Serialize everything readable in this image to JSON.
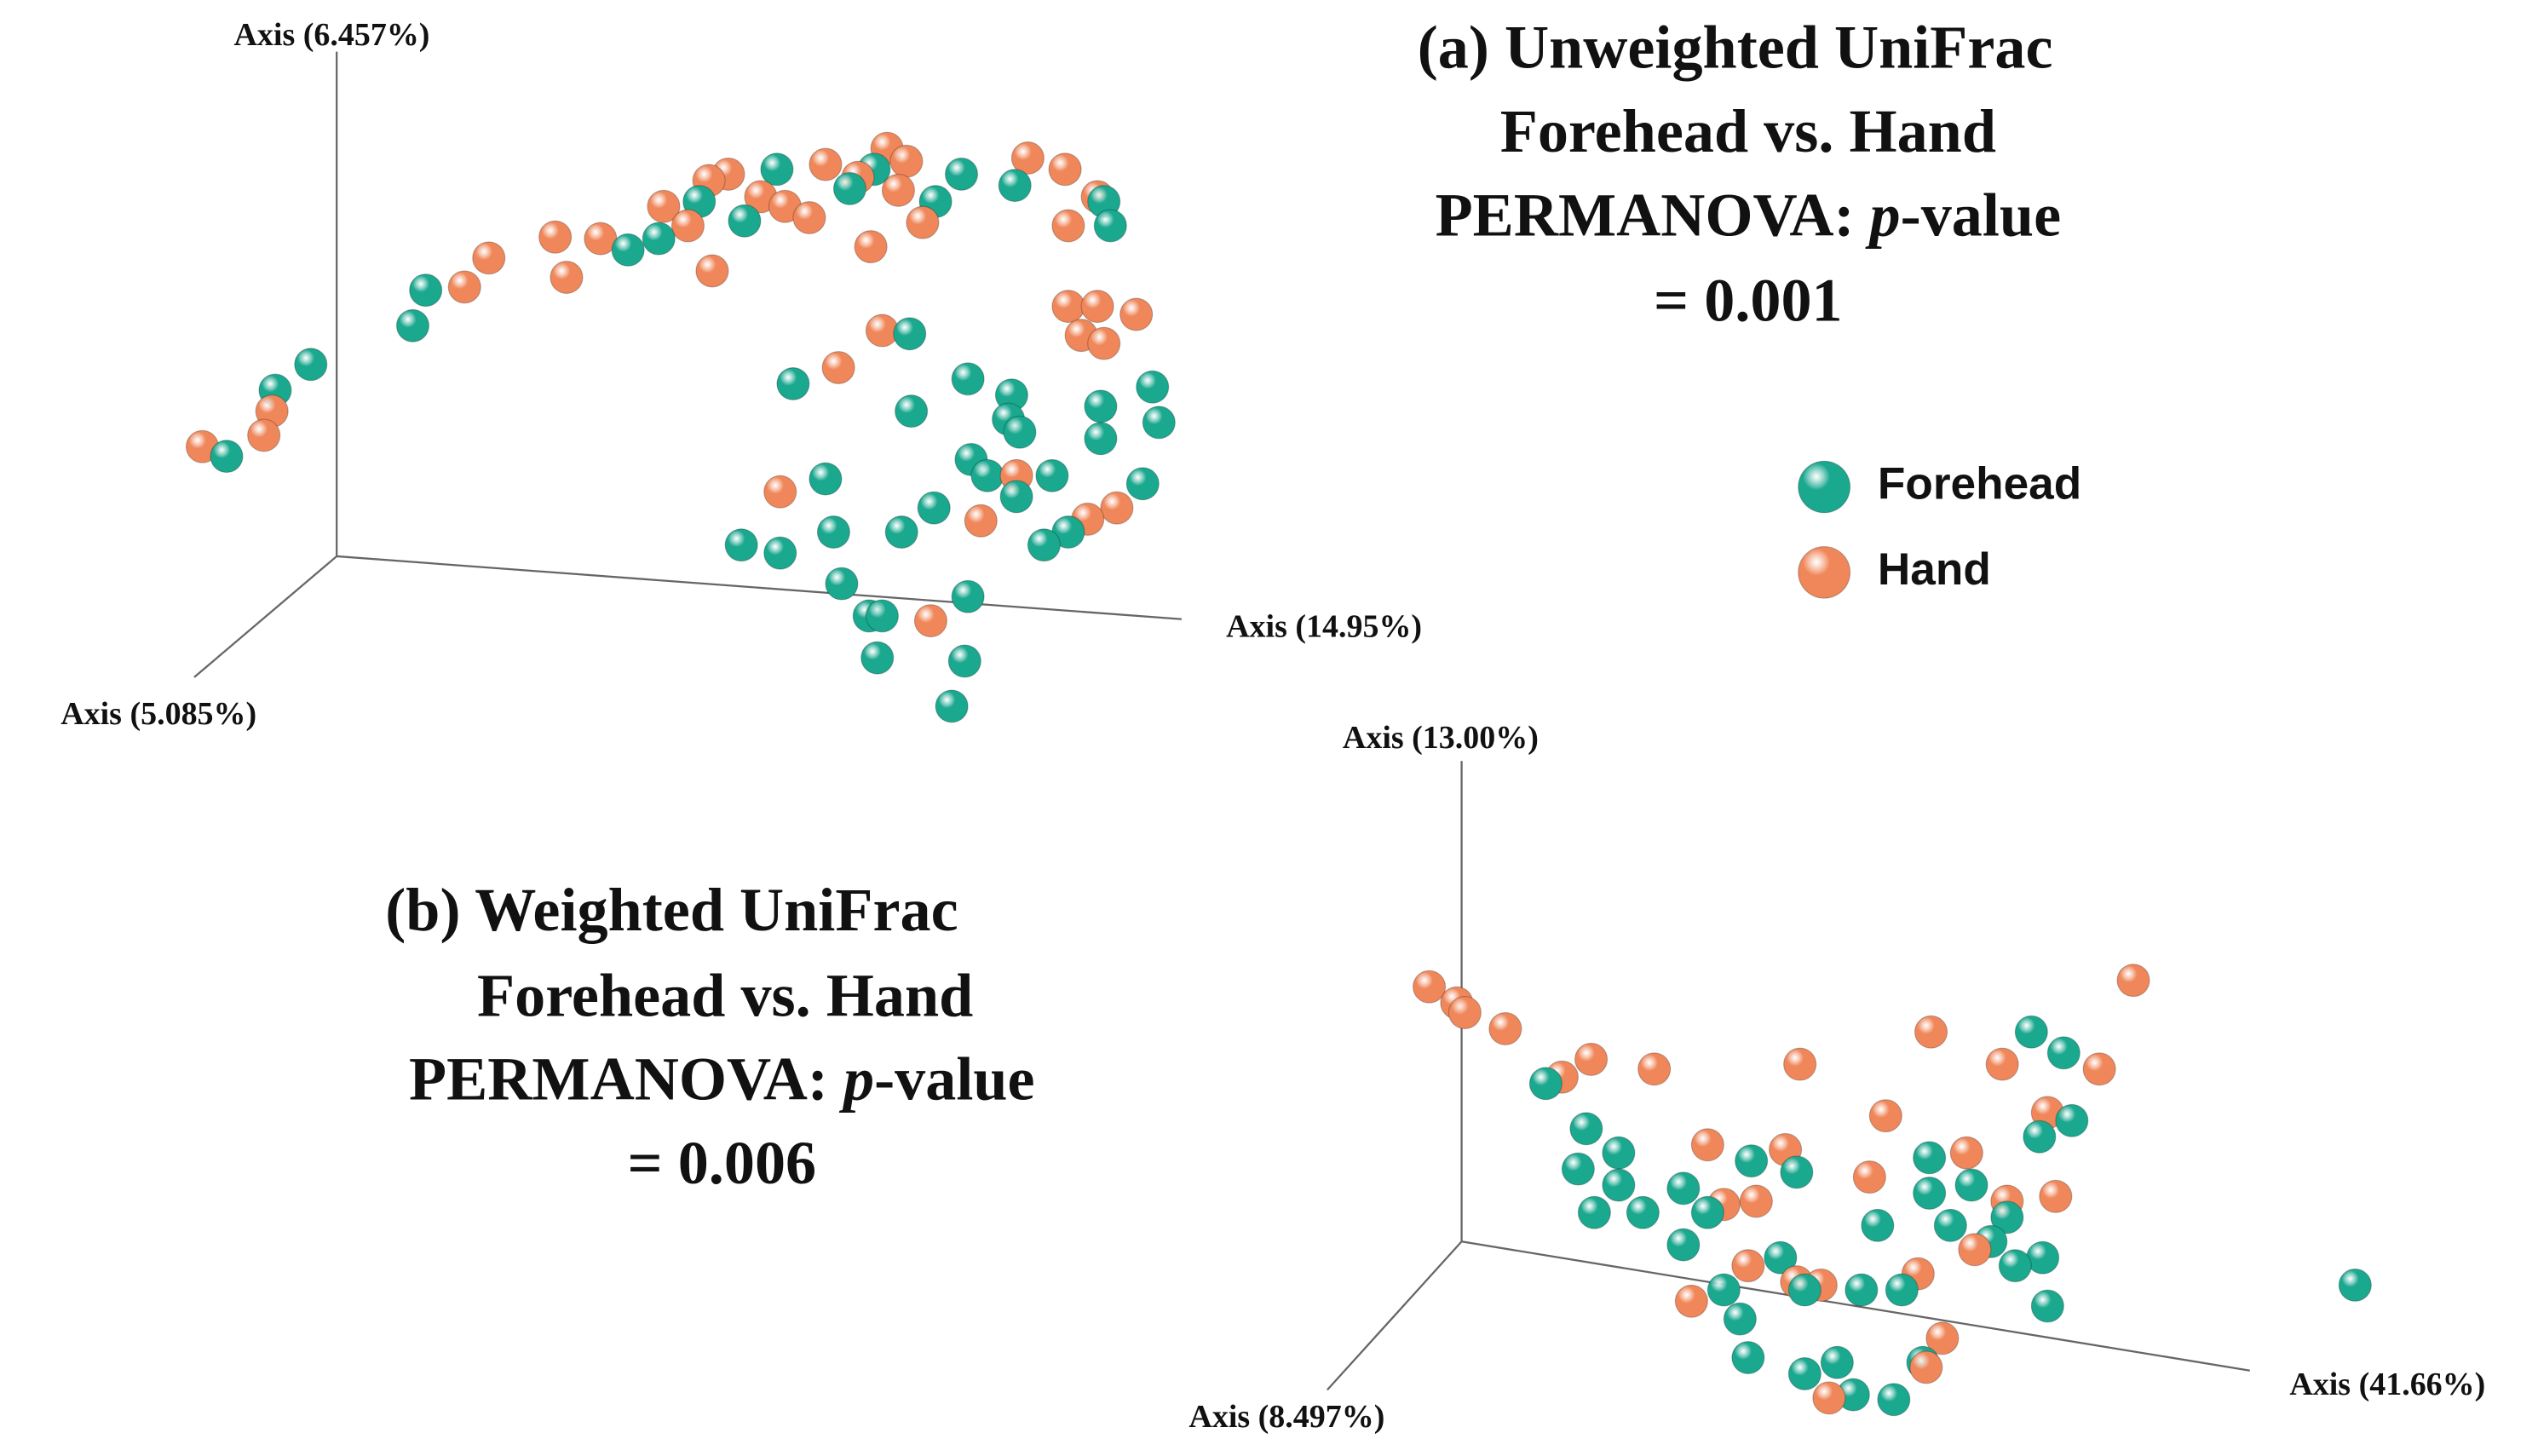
{
  "panels": [
    {
      "title": [
        "(a) Unweighted UniFrac",
        "Forehead vs. Hand"
      ],
      "test": {
        "prefix": "PERMANOVA: ",
        "italic": "p",
        "suffix": "-value"
      },
      "result": "= 0.001",
      "axes": {
        "vertical": "Axis (6.457%)",
        "horizontal": "Axis (14.95%)",
        "depth": "Axis (5.085%)"
      }
    },
    {
      "title": [
        "(b) Weighted UniFrac",
        "Forehead vs. Hand"
      ],
      "test": {
        "prefix": "PERMANOVA: ",
        "italic": "p",
        "suffix": "-value"
      },
      "result": "= 0.006",
      "axes": {
        "vertical": "Axis (13.00%)",
        "horizontal": "Axis (41.66%)",
        "depth": "Axis (8.497%)"
      }
    }
  ],
  "legend": [
    {
      "name": "Forehead",
      "color": "#1aa88f"
    },
    {
      "name": "Hand",
      "color": "#f0875a"
    }
  ]
}
